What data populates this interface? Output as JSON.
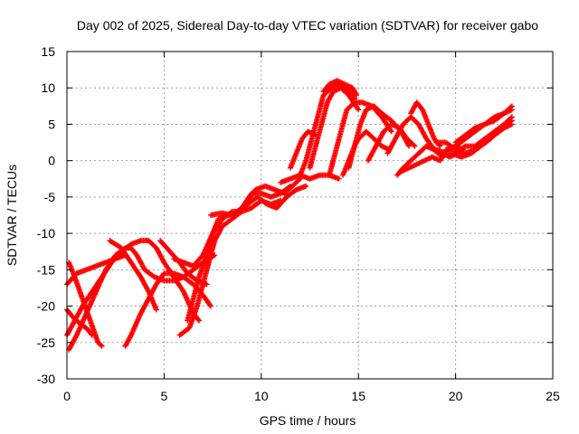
{
  "chart_data": {
    "type": "scatter",
    "title": "Day 002 of 2025, Sidereal Day-to-day VTEC variation (SDTVAR) for receiver gabo",
    "xlabel": "GPS time / hours",
    "ylabel": "SDTVAR / TECUs",
    "xlim": [
      0,
      25
    ],
    "ylim": [
      -30,
      15
    ],
    "x_ticks": [
      0,
      5,
      10,
      15,
      20,
      25
    ],
    "y_ticks": [
      -30,
      -25,
      -20,
      -15,
      -10,
      -5,
      0,
      5,
      10,
      15
    ],
    "grid": true,
    "legend": "none",
    "marker": "plus",
    "series": [
      {
        "color": "#ff0000",
        "tracks": [
          [
            [
              0.0,
              -17
            ],
            [
              0.5,
              -15.5
            ],
            [
              1.0,
              -15.0
            ],
            [
              1.5,
              -14.5
            ],
            [
              2.0,
              -14.0
            ],
            [
              2.5,
              -13.5
            ],
            [
              3.0,
              -13.0
            ]
          ],
          [
            [
              0.1,
              -14
            ],
            [
              0.4,
              -16
            ],
            [
              0.8,
              -19
            ],
            [
              1.2,
              -22
            ],
            [
              1.6,
              -25
            ],
            [
              1.8,
              -25.5
            ]
          ],
          [
            [
              0.0,
              -20.5
            ],
            [
              0.3,
              -21.5
            ],
            [
              0.7,
              -22.5
            ],
            [
              1.0,
              -23
            ],
            [
              1.3,
              -24
            ]
          ],
          [
            [
              0.0,
              -24
            ],
            [
              0.4,
              -22
            ],
            [
              0.8,
              -20
            ],
            [
              1.3,
              -18
            ],
            [
              1.8,
              -16
            ],
            [
              2.3,
              -14
            ],
            [
              2.8,
              -12.5
            ],
            [
              3.3,
              -11.5
            ],
            [
              3.8,
              -11
            ],
            [
              4.2,
              -11
            ],
            [
              4.6,
              -12
            ],
            [
              5.0,
              -14
            ],
            [
              5.5,
              -16
            ],
            [
              6.0,
              -18
            ],
            [
              6.5,
              -21
            ],
            [
              6.8,
              -22
            ]
          ],
          [
            [
              0.1,
              -26
            ],
            [
              0.5,
              -24
            ],
            [
              1.0,
              -21
            ],
            [
              1.5,
              -18
            ],
            [
              2.0,
              -15
            ],
            [
              2.5,
              -13
            ],
            [
              3.0,
              -12
            ],
            [
              3.3,
              -12
            ],
            [
              3.6,
              -13
            ],
            [
              4.0,
              -15
            ],
            [
              4.5,
              -16
            ],
            [
              5.0,
              -16.5
            ],
            [
              5.5,
              -16.5
            ],
            [
              6.0,
              -16
            ],
            [
              6.5,
              -15
            ],
            [
              7.0,
              -14
            ],
            [
              7.6,
              -13
            ]
          ],
          [
            [
              2.2,
              -11
            ],
            [
              2.8,
              -12
            ],
            [
              3.3,
              -14
            ],
            [
              3.8,
              -16
            ],
            [
              4.2,
              -18
            ],
            [
              4.6,
              -20.5
            ]
          ],
          [
            [
              3.0,
              -25.5
            ],
            [
              3.3,
              -24
            ],
            [
              3.8,
              -21
            ],
            [
              4.2,
              -19
            ],
            [
              4.6,
              -17
            ],
            [
              5.0,
              -15.5
            ],
            [
              5.5,
              -15.5
            ],
            [
              6.0,
              -16
            ],
            [
              6.5,
              -17
            ],
            [
              7.0,
              -18.5
            ],
            [
              7.4,
              -20
            ]
          ],
          [
            [
              4.8,
              -11
            ],
            [
              5.3,
              -12.5
            ],
            [
              5.8,
              -14
            ],
            [
              6.2,
              -15.5
            ],
            [
              6.7,
              -16.5
            ],
            [
              7.2,
              -17
            ]
          ],
          [
            [
              5.8,
              -24
            ],
            [
              6.3,
              -23
            ],
            [
              6.7,
              -20
            ],
            [
              7.0,
              -17
            ],
            [
              7.3,
              -14
            ],
            [
              7.6,
              -11
            ],
            [
              8.0,
              -9
            ],
            [
              8.5,
              -8
            ],
            [
              9.0,
              -7
            ],
            [
              9.3,
              -5.5
            ],
            [
              9.7,
              -4
            ],
            [
              10.2,
              -3.5
            ],
            [
              10.7,
              -4
            ],
            [
              11.2,
              -4.5
            ],
            [
              11.6,
              -3.5
            ],
            [
              12.0,
              -2.5
            ]
          ],
          [
            [
              6.2,
              -22
            ],
            [
              6.5,
              -19
            ],
            [
              6.8,
              -16
            ],
            [
              7.2,
              -13
            ],
            [
              7.5,
              -10
            ],
            [
              7.8,
              -8
            ],
            [
              8.3,
              -7.5
            ],
            [
              8.8,
              -7
            ],
            [
              9.3,
              -6
            ],
            [
              9.8,
              -5
            ],
            [
              10.3,
              -6
            ],
            [
              10.8,
              -6.5
            ],
            [
              11.3,
              -5
            ],
            [
              11.8,
              -4
            ],
            [
              12.3,
              -3.5
            ]
          ],
          [
            [
              5.5,
              -13.5
            ],
            [
              6.0,
              -14
            ],
            [
              6.5,
              -14.5
            ],
            [
              7.0,
              -13
            ],
            [
              7.5,
              -10
            ],
            [
              8.0,
              -8
            ],
            [
              8.5,
              -7
            ],
            [
              9.0,
              -7
            ],
            [
              9.5,
              -6.5
            ],
            [
              10.0,
              -5.5
            ],
            [
              10.5,
              -6
            ],
            [
              11.0,
              -5.5
            ]
          ],
          [
            [
              7.4,
              -7.5
            ],
            [
              8.0,
              -7.2
            ],
            [
              8.5,
              -7.5
            ],
            [
              9.0,
              -6.5
            ],
            [
              9.5,
              -4.5
            ],
            [
              10.0,
              -4.5
            ],
            [
              10.5,
              -5
            ],
            [
              11.0,
              -4.5
            ],
            [
              11.5,
              -3.5
            ]
          ],
          [
            [
              11.0,
              -3
            ],
            [
              11.5,
              -2.5
            ],
            [
              12.0,
              -2
            ],
            [
              12.5,
              -2.5
            ],
            [
              13.0,
              -2
            ],
            [
              13.5,
              -2
            ],
            [
              14.0,
              -2.5
            ]
          ],
          [
            [
              11.5,
              -1
            ],
            [
              11.8,
              1
            ],
            [
              12.1,
              3
            ],
            [
              12.4,
              4
            ],
            [
              12.8,
              3.5
            ]
          ],
          [
            [
              12.0,
              -2
            ],
            [
              12.3,
              0
            ],
            [
              12.6,
              3
            ],
            [
              12.9,
              6
            ],
            [
              13.2,
              9
            ],
            [
              13.6,
              10
            ],
            [
              14.0,
              10.5
            ],
            [
              14.4,
              10
            ],
            [
              14.8,
              8.5
            ]
          ],
          [
            [
              12.5,
              -1
            ],
            [
              12.8,
              2
            ],
            [
              13.1,
              5
            ],
            [
              13.4,
              8
            ],
            [
              13.7,
              9.5
            ],
            [
              14.1,
              10
            ],
            [
              14.5,
              9
            ],
            [
              15.0,
              7
            ]
          ],
          [
            [
              13.5,
              -2
            ],
            [
              13.8,
              1
            ],
            [
              14.1,
              4
            ],
            [
              14.4,
              7
            ],
            [
              14.8,
              8
            ],
            [
              15.2,
              8
            ],
            [
              15.7,
              7.5
            ],
            [
              16.2,
              6
            ],
            [
              16.7,
              4
            ]
          ],
          [
            [
              14.5,
              -1
            ],
            [
              14.8,
              2
            ],
            [
              15.1,
              5
            ],
            [
              15.4,
              7
            ],
            [
              15.8,
              7.5
            ],
            [
              16.2,
              6.5
            ],
            [
              16.7,
              5.5
            ],
            [
              17.2,
              4
            ],
            [
              17.6,
              2
            ]
          ],
          [
            [
              13.2,
              9.5
            ],
            [
              13.5,
              10.5
            ],
            [
              13.9,
              11
            ],
            [
              14.3,
              10.5
            ],
            [
              14.7,
              10
            ],
            [
              14.9,
              9
            ]
          ],
          [
            [
              14.2,
              -2
            ],
            [
              14.5,
              0
            ],
            [
              14.8,
              2
            ],
            [
              15.0,
              3
            ],
            [
              15.4,
              4
            ],
            [
              15.8,
              3
            ],
            [
              16.2,
              2
            ],
            [
              16.6,
              1.5
            ]
          ],
          [
            [
              15.5,
              0
            ],
            [
              15.9,
              2
            ],
            [
              16.3,
              4
            ],
            [
              16.7,
              5
            ],
            [
              17.1,
              4.5
            ],
            [
              17.5,
              3
            ],
            [
              17.9,
              2
            ]
          ],
          [
            [
              16.5,
              1
            ],
            [
              16.9,
              3
            ],
            [
              17.3,
              5
            ],
            [
              17.7,
              6
            ],
            [
              18.1,
              5
            ],
            [
              18.5,
              3
            ],
            [
              18.9,
              1.5
            ],
            [
              19.3,
              0.5
            ]
          ],
          [
            [
              17.0,
              -2
            ],
            [
              17.3,
              -1
            ],
            [
              17.7,
              0
            ],
            [
              18.1,
              1
            ],
            [
              18.5,
              2
            ],
            [
              18.9,
              1.5
            ],
            [
              19.3,
              1
            ],
            [
              19.7,
              0.5
            ],
            [
              20.1,
              1
            ]
          ],
          [
            [
              17.2,
              -1.5
            ],
            [
              17.6,
              -1
            ],
            [
              18.0,
              -0.5
            ],
            [
              18.4,
              0
            ],
            [
              18.8,
              0.5
            ],
            [
              19.2,
              0
            ],
            [
              19.6,
              1.5
            ],
            [
              20.0,
              2
            ],
            [
              20.4,
              1.5
            ]
          ],
          [
            [
              17.7,
              6.5
            ],
            [
              18.0,
              8
            ],
            [
              18.3,
              7
            ],
            [
              18.6,
              5
            ],
            [
              18.9,
              3
            ],
            [
              19.2,
              2
            ]
          ],
          [
            [
              18.5,
              2
            ],
            [
              19.0,
              1.5
            ],
            [
              19.5,
              1
            ],
            [
              20.0,
              1
            ],
            [
              20.5,
              2
            ],
            [
              21.0,
              2
            ],
            [
              21.5,
              3
            ],
            [
              22.0,
              4
            ],
            [
              22.5,
              5
            ],
            [
              22.9,
              5.5
            ]
          ],
          [
            [
              19.0,
              2.5
            ],
            [
              19.5,
              2.5
            ],
            [
              20.0,
              1.5
            ],
            [
              20.5,
              1
            ],
            [
              21.0,
              1.5
            ],
            [
              21.5,
              2.5
            ],
            [
              22.0,
              3.5
            ],
            [
              22.5,
              4.5
            ],
            [
              22.9,
              5
            ]
          ],
          [
            [
              19.5,
              1.5
            ],
            [
              20.0,
              2
            ],
            [
              20.5,
              3
            ],
            [
              21.0,
              4
            ],
            [
              21.5,
              5
            ],
            [
              22.0,
              5.5
            ],
            [
              22.5,
              6.5
            ],
            [
              22.9,
              7
            ]
          ],
          [
            [
              20.0,
              2.5
            ],
            [
              20.5,
              3.5
            ],
            [
              21.0,
              4.5
            ],
            [
              21.5,
              5
            ],
            [
              22.0,
              6
            ],
            [
              22.5,
              6.5
            ],
            [
              22.9,
              7.5
            ]
          ],
          [
            [
              19.8,
              1
            ],
            [
              20.3,
              0.5
            ],
            [
              20.8,
              1
            ],
            [
              21.3,
              2
            ],
            [
              21.8,
              3
            ],
            [
              22.3,
              4.5
            ],
            [
              22.9,
              6
            ]
          ]
        ]
      }
    ]
  }
}
